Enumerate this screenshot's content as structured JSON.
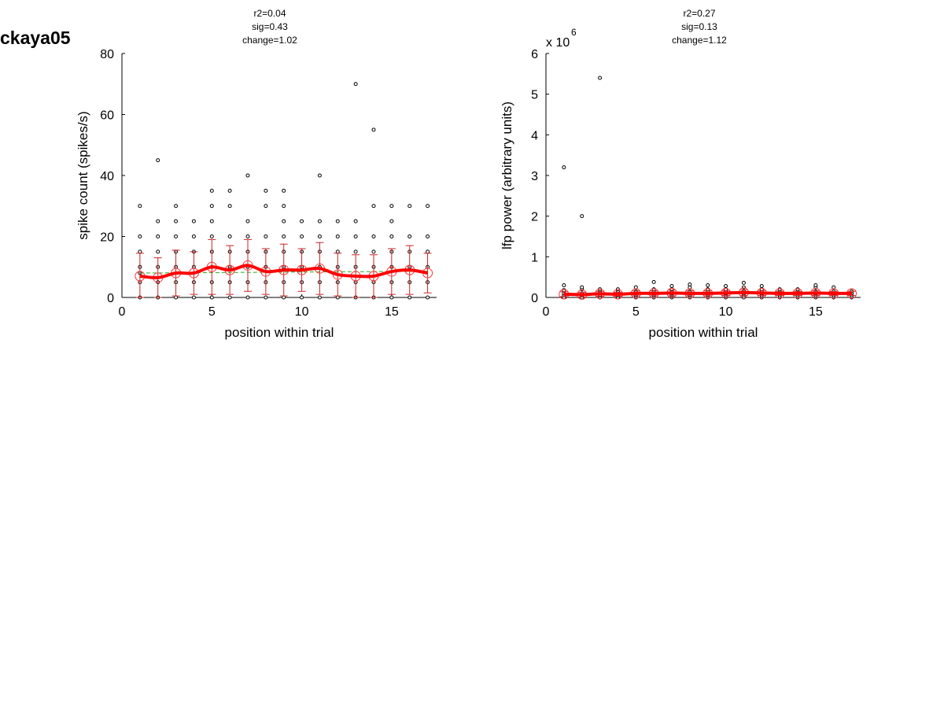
{
  "figure_title": "ckaya05",
  "colors": {
    "points": "#000000",
    "mean_line": "#ff0000",
    "mean_marker": "#ff3333",
    "errorbar": "#cc2222",
    "fit_line": "#22aa22"
  },
  "chart_data": [
    {
      "type": "scatter",
      "annotations": [
        "r2=0.04",
        "sig=0.43",
        "change=1.02"
      ],
      "xlabel": "position within trial",
      "ylabel": "spike count (spikes/s)",
      "xlim": [
        0,
        17.5
      ],
      "ylim": [
        0,
        80
      ],
      "xticks": [
        0,
        5,
        10,
        15
      ],
      "yticks": [
        0,
        20,
        40,
        60,
        80
      ],
      "y_exponent": null,
      "grid": false,
      "points": [
        [
          1,
          0
        ],
        [
          1,
          5
        ],
        [
          1,
          8
        ],
        [
          1,
          10
        ],
        [
          1,
          15
        ],
        [
          1,
          20
        ],
        [
          1,
          30
        ],
        [
          2,
          0
        ],
        [
          2,
          5
        ],
        [
          2,
          10
        ],
        [
          2,
          15
        ],
        [
          2,
          20
        ],
        [
          2,
          25
        ],
        [
          2,
          45
        ],
        [
          3,
          0
        ],
        [
          3,
          5
        ],
        [
          3,
          10
        ],
        [
          3,
          15
        ],
        [
          3,
          20
        ],
        [
          3,
          25
        ],
        [
          3,
          30
        ],
        [
          4,
          0
        ],
        [
          4,
          5
        ],
        [
          4,
          10
        ],
        [
          4,
          15
        ],
        [
          4,
          20
        ],
        [
          4,
          25
        ],
        [
          5,
          0
        ],
        [
          5,
          5
        ],
        [
          5,
          10
        ],
        [
          5,
          15
        ],
        [
          5,
          20
        ],
        [
          5,
          25
        ],
        [
          5,
          30
        ],
        [
          5,
          35
        ],
        [
          6,
          0
        ],
        [
          6,
          5
        ],
        [
          6,
          10
        ],
        [
          6,
          15
        ],
        [
          6,
          20
        ],
        [
          6,
          30
        ],
        [
          6,
          35
        ],
        [
          7,
          0
        ],
        [
          7,
          5
        ],
        [
          7,
          10
        ],
        [
          7,
          15
        ],
        [
          7,
          20
        ],
        [
          7,
          25
        ],
        [
          7,
          40
        ],
        [
          8,
          0
        ],
        [
          8,
          5
        ],
        [
          8,
          10
        ],
        [
          8,
          15
        ],
        [
          8,
          20
        ],
        [
          8,
          30
        ],
        [
          8,
          35
        ],
        [
          9,
          0
        ],
        [
          9,
          5
        ],
        [
          9,
          10
        ],
        [
          9,
          15
        ],
        [
          9,
          20
        ],
        [
          9,
          25
        ],
        [
          9,
          30
        ],
        [
          9,
          35
        ],
        [
          10,
          0
        ],
        [
          10,
          5
        ],
        [
          10,
          10
        ],
        [
          10,
          15
        ],
        [
          10,
          20
        ],
        [
          10,
          25
        ],
        [
          11,
          0
        ],
        [
          11,
          5
        ],
        [
          11,
          10
        ],
        [
          11,
          15
        ],
        [
          11,
          20
        ],
        [
          11,
          25
        ],
        [
          11,
          40
        ],
        [
          12,
          0
        ],
        [
          12,
          5
        ],
        [
          12,
          10
        ],
        [
          12,
          15
        ],
        [
          12,
          20
        ],
        [
          12,
          25
        ],
        [
          13,
          0
        ],
        [
          13,
          5
        ],
        [
          13,
          10
        ],
        [
          13,
          15
        ],
        [
          13,
          20
        ],
        [
          13,
          25
        ],
        [
          13,
          70
        ],
        [
          14,
          0
        ],
        [
          14,
          5
        ],
        [
          14,
          10
        ],
        [
          14,
          15
        ],
        [
          14,
          20
        ],
        [
          14,
          30
        ],
        [
          14,
          55
        ],
        [
          15,
          0
        ],
        [
          15,
          5
        ],
        [
          15,
          10
        ],
        [
          15,
          15
        ],
        [
          15,
          20
        ],
        [
          15,
          25
        ],
        [
          15,
          30
        ],
        [
          16,
          0
        ],
        [
          16,
          5
        ],
        [
          16,
          10
        ],
        [
          16,
          15
        ],
        [
          16,
          20
        ],
        [
          16,
          30
        ],
        [
          17,
          0
        ],
        [
          17,
          5
        ],
        [
          17,
          10
        ],
        [
          17,
          15
        ],
        [
          17,
          20
        ],
        [
          17,
          30
        ]
      ],
      "mean": {
        "x": [
          1,
          2,
          3,
          4,
          5,
          6,
          7,
          8,
          9,
          10,
          11,
          12,
          13,
          14,
          15,
          16,
          17
        ],
        "y": [
          7,
          6.5,
          8,
          8,
          10,
          9,
          10.5,
          8.5,
          9,
          9,
          9.5,
          7.5,
          7,
          7,
          8.5,
          9,
          8
        ],
        "err": [
          7.5,
          6.5,
          7.5,
          7,
          9,
          8,
          8.5,
          7.5,
          8.5,
          7,
          8.5,
          7,
          7,
          7,
          7.5,
          8,
          6.5
        ]
      },
      "fit": {
        "x": [
          1,
          17
        ],
        "y": [
          8.0,
          8.6
        ]
      }
    },
    {
      "type": "scatter",
      "annotations": [
        "r2=0.27",
        "sig=0.13",
        "change=1.12"
      ],
      "xlabel": "position within trial",
      "ylabel": "lfp power (arbitrary units)",
      "xlim": [
        0,
        17.5
      ],
      "ylim": [
        0,
        6
      ],
      "xticks": [
        0,
        5,
        10,
        15
      ],
      "yticks": [
        0,
        1,
        2,
        3,
        4,
        5,
        6
      ],
      "y_exponent": 6,
      "y_exponent_base": "x 10",
      "grid": false,
      "points": [
        [
          1,
          0
        ],
        [
          1,
          0.05
        ],
        [
          1,
          0.1
        ],
        [
          1,
          0.18
        ],
        [
          1,
          0.3
        ],
        [
          1,
          3.2
        ],
        [
          2,
          0
        ],
        [
          2,
          0.05
        ],
        [
          2,
          0.1
        ],
        [
          2,
          0.2
        ],
        [
          2,
          0.25
        ],
        [
          2,
          2.0
        ],
        [
          3,
          0
        ],
        [
          3,
          0.05
        ],
        [
          3,
          0.1
        ],
        [
          3,
          0.15
        ],
        [
          3,
          0.2
        ],
        [
          3,
          5.4
        ],
        [
          4,
          0
        ],
        [
          4,
          0.05
        ],
        [
          4,
          0.1
        ],
        [
          4,
          0.15
        ],
        [
          4,
          0.2
        ],
        [
          5,
          0
        ],
        [
          5,
          0.05
        ],
        [
          5,
          0.1
        ],
        [
          5,
          0.15
        ],
        [
          5,
          0.25
        ],
        [
          6,
          0
        ],
        [
          6,
          0.05
        ],
        [
          6,
          0.1
        ],
        [
          6,
          0.15
        ],
        [
          6,
          0.2
        ],
        [
          6,
          0.38
        ],
        [
          7,
          0
        ],
        [
          7,
          0.05
        ],
        [
          7,
          0.1
        ],
        [
          7,
          0.15
        ],
        [
          7,
          0.2
        ],
        [
          7,
          0.28
        ],
        [
          8,
          0
        ],
        [
          8,
          0.05
        ],
        [
          8,
          0.1
        ],
        [
          8,
          0.15
        ],
        [
          8,
          0.25
        ],
        [
          8,
          0.32
        ],
        [
          9,
          0
        ],
        [
          9,
          0.05
        ],
        [
          9,
          0.1
        ],
        [
          9,
          0.15
        ],
        [
          9,
          0.2
        ],
        [
          9,
          0.3
        ],
        [
          10,
          0
        ],
        [
          10,
          0.05
        ],
        [
          10,
          0.1
        ],
        [
          10,
          0.15
        ],
        [
          10,
          0.2
        ],
        [
          10,
          0.28
        ],
        [
          11,
          0
        ],
        [
          11,
          0.05
        ],
        [
          11,
          0.1
        ],
        [
          11,
          0.15
        ],
        [
          11,
          0.25
        ],
        [
          11,
          0.36
        ],
        [
          12,
          0
        ],
        [
          12,
          0.05
        ],
        [
          12,
          0.1
        ],
        [
          12,
          0.15
        ],
        [
          12,
          0.2
        ],
        [
          12,
          0.28
        ],
        [
          13,
          0
        ],
        [
          13,
          0.05
        ],
        [
          13,
          0.1
        ],
        [
          13,
          0.15
        ],
        [
          13,
          0.2
        ],
        [
          14,
          0
        ],
        [
          14,
          0.05
        ],
        [
          14,
          0.1
        ],
        [
          14,
          0.15
        ],
        [
          14,
          0.2
        ],
        [
          15,
          0
        ],
        [
          15,
          0.05
        ],
        [
          15,
          0.1
        ],
        [
          15,
          0.15
        ],
        [
          15,
          0.25
        ],
        [
          15,
          0.3
        ],
        [
          16,
          0
        ],
        [
          16,
          0.05
        ],
        [
          16,
          0.1
        ],
        [
          16,
          0.15
        ],
        [
          16,
          0.25
        ],
        [
          17,
          0
        ],
        [
          17,
          0.05
        ],
        [
          17,
          0.1
        ],
        [
          17,
          0.15
        ]
      ],
      "mean": {
        "x": [
          1,
          2,
          3,
          4,
          5,
          6,
          7,
          8,
          9,
          10,
          11,
          12,
          13,
          14,
          15,
          16,
          17
        ],
        "y": [
          0.08,
          0.07,
          0.09,
          0.08,
          0.1,
          0.1,
          0.11,
          0.1,
          0.1,
          0.11,
          0.12,
          0.11,
          0.1,
          0.1,
          0.11,
          0.1,
          0.1
        ],
        "err": [
          0.06,
          0.06,
          0.06,
          0.05,
          0.06,
          0.06,
          0.07,
          0.06,
          0.06,
          0.06,
          0.07,
          0.06,
          0.05,
          0.05,
          0.06,
          0.05,
          0.05
        ]
      },
      "fit": {
        "x": [
          1,
          17
        ],
        "y": [
          0.07,
          0.12
        ]
      }
    }
  ]
}
